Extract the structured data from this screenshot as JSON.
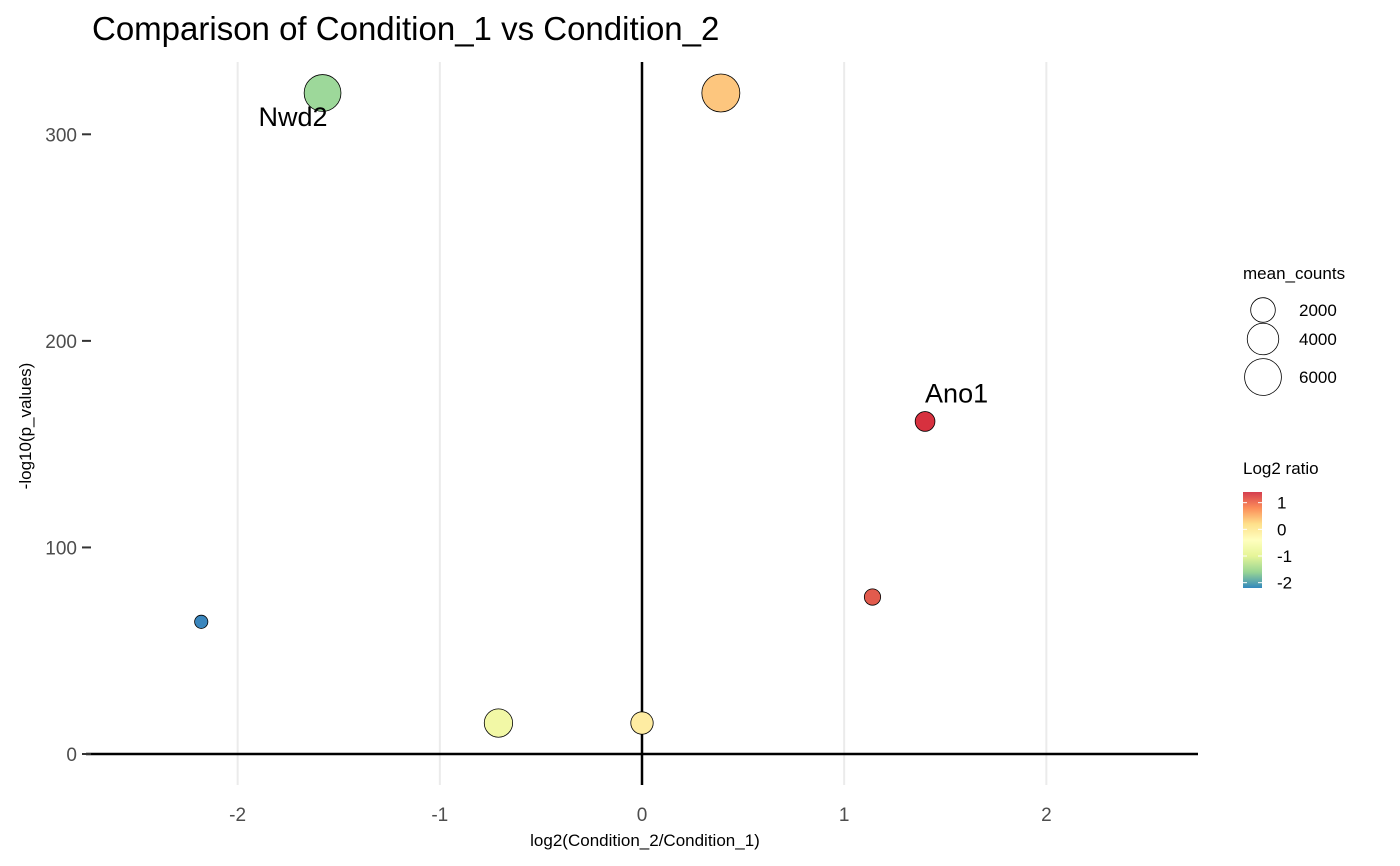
{
  "chart_data": {
    "type": "scatter",
    "title": "Comparison of Condition_1 vs Condition_2",
    "xlabel": "log2(Condition_2/Condition_1)",
    "ylabel": "-log10(p_values)",
    "xlim": [
      -2.75,
      2.75
    ],
    "ylim": [
      -15,
      335
    ],
    "x_ticks": [
      -2,
      -1,
      0,
      1,
      2
    ],
    "y_ticks": [
      0,
      100,
      200,
      300
    ],
    "grid": "vertical major lines",
    "reference_lines": {
      "x": 0,
      "y": 0
    },
    "points": [
      {
        "x": -1.58,
        "y": 320,
        "mean_counts": 6000,
        "log2_ratio": -1.58,
        "label": "Nwd2",
        "color": "#9DD89A"
      },
      {
        "x": 0.39,
        "y": 320,
        "mean_counts": 6500,
        "log2_ratio": 0.39,
        "label": "",
        "color": "#FDC67E"
      },
      {
        "x": 1.4,
        "y": 161,
        "mean_counts": 1000,
        "log2_ratio": 1.4,
        "label": "Ano1",
        "color": "#D7313F"
      },
      {
        "x": 1.14,
        "y": 76,
        "mean_counts": 500,
        "log2_ratio": 1.14,
        "label": "",
        "color": "#E25B4D"
      },
      {
        "x": -2.18,
        "y": 64,
        "mean_counts": 200,
        "log2_ratio": -2.18,
        "label": "",
        "color": "#3A86BD"
      },
      {
        "x": -0.71,
        "y": 15,
        "mean_counts": 3000,
        "log2_ratio": -0.71,
        "label": "",
        "color": "#F2F8A6"
      },
      {
        "x": 0.0,
        "y": 15,
        "mean_counts": 1500,
        "log2_ratio": 0.0,
        "label": "",
        "color": "#FEECA2"
      }
    ],
    "legend": {
      "placement": "right",
      "size": {
        "title": "mean_counts",
        "entries": [
          {
            "label": "2000",
            "value": 2000
          },
          {
            "label": "4000",
            "value": 4000
          },
          {
            "label": "6000",
            "value": 6000
          }
        ]
      },
      "color": {
        "title": "Log2 ratio",
        "labels": [
          "1",
          "0",
          "-1",
          "-2"
        ],
        "values": [
          1,
          0,
          -1,
          -2
        ],
        "range": [
          -2.2,
          1.4
        ],
        "stops": [
          "#D53E4F",
          "#FC8D59",
          "#FEE08B",
          "#FFFFBF",
          "#E6F598",
          "#99D594",
          "#3288BD"
        ]
      }
    }
  }
}
